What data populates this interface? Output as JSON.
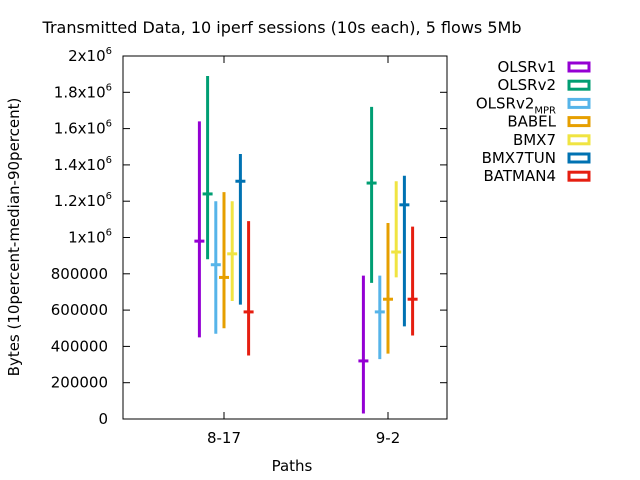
{
  "chart_data": {
    "type": "errorbar",
    "title": "Transmitted Data, 10 iperf sessions (10s each), 5 flows 5Mb",
    "xlabel": "Paths",
    "ylabel": "Bytes (10percent-median-90percent)",
    "categories": [
      "8-17",
      "9-2"
    ],
    "ylim": [
      0,
      2000000
    ],
    "yticks": [
      {
        "value": 0,
        "label": "0"
      },
      {
        "value": 200000,
        "label": "200000"
      },
      {
        "value": 400000,
        "label": "400000"
      },
      {
        "value": 600000,
        "label": "600000"
      },
      {
        "value": 800000,
        "label": "800000"
      },
      {
        "value": 1000000,
        "base": "1x10",
        "exp": "6"
      },
      {
        "value": 1200000,
        "base": "1.2x10",
        "exp": "6"
      },
      {
        "value": 1400000,
        "base": "1.4x10",
        "exp": "6"
      },
      {
        "value": 1600000,
        "base": "1.6x10",
        "exp": "6"
      },
      {
        "value": 1800000,
        "base": "1.8x10",
        "exp": "6"
      },
      {
        "value": 2000000,
        "base": "2x10",
        "exp": "6"
      }
    ],
    "grid": false,
    "legend_position": "outside-right",
    "series": [
      {
        "name": "OLSRv1",
        "color": "#9400d3",
        "values": [
          {
            "low": 450000,
            "median": 980000,
            "high": 1640000
          },
          {
            "low": 30000,
            "median": 320000,
            "high": 790000
          }
        ]
      },
      {
        "name": "OLSRv2",
        "color": "#009e73",
        "values": [
          {
            "low": 880000,
            "median": 1240000,
            "high": 1890000
          },
          {
            "low": 750000,
            "median": 1300000,
            "high": 1720000
          }
        ]
      },
      {
        "name": "OLSRv2",
        "sub": "MPR",
        "color": "#56b4e9",
        "values": [
          {
            "low": 470000,
            "median": 850000,
            "high": 1200000
          },
          {
            "low": 330000,
            "median": 590000,
            "high": 790000
          }
        ]
      },
      {
        "name": "BABEL",
        "color": "#e69f00",
        "values": [
          {
            "low": 500000,
            "median": 780000,
            "high": 1250000
          },
          {
            "low": 360000,
            "median": 660000,
            "high": 1080000
          }
        ]
      },
      {
        "name": "BMX7",
        "color": "#f0e442",
        "values": [
          {
            "low": 650000,
            "median": 910000,
            "high": 1200000
          },
          {
            "low": 780000,
            "median": 920000,
            "high": 1310000
          }
        ]
      },
      {
        "name": "BMX7TUN",
        "color": "#0072b2",
        "values": [
          {
            "low": 630000,
            "median": 1310000,
            "high": 1460000
          },
          {
            "low": 510000,
            "median": 1180000,
            "high": 1340000
          }
        ]
      },
      {
        "name": "BATMAN4",
        "color": "#e51e10",
        "values": [
          {
            "low": 350000,
            "median": 590000,
            "high": 1090000
          },
          {
            "low": 460000,
            "median": 660000,
            "high": 1060000
          }
        ]
      }
    ]
  }
}
